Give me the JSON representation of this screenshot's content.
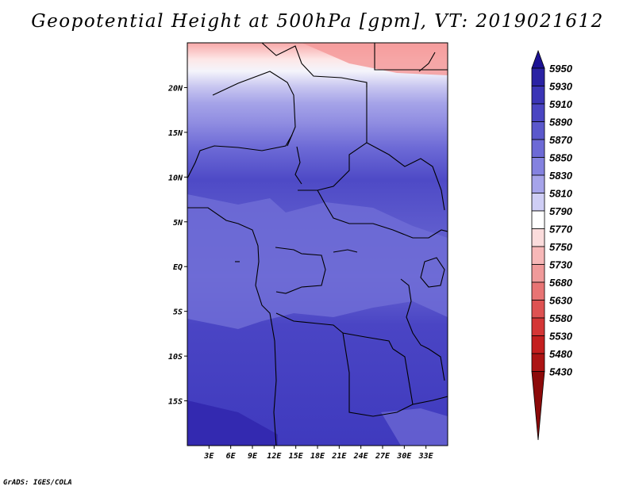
{
  "chart_data": {
    "type": "heatmap",
    "title": "Geopotential Height at 500hPa [gpm], VT: 2019021612",
    "subtitle": "",
    "xlabel": "",
    "ylabel": "",
    "xlim": [
      0,
      36
    ],
    "ylim": [
      -20,
      25
    ],
    "x_ticks": [
      {
        "value": 3,
        "label": "3E"
      },
      {
        "value": 6,
        "label": "6E"
      },
      {
        "value": 9,
        "label": "9E"
      },
      {
        "value": 12,
        "label": "12E"
      },
      {
        "value": 15,
        "label": "15E"
      },
      {
        "value": 18,
        "label": "18E"
      },
      {
        "value": 21,
        "label": "21E"
      },
      {
        "value": 24,
        "label": "24E"
      },
      {
        "value": 27,
        "label": "27E"
      },
      {
        "value": 30,
        "label": "30E"
      },
      {
        "value": 33,
        "label": "33E"
      }
    ],
    "y_ticks": [
      {
        "value": 20,
        "label": "20N"
      },
      {
        "value": 15,
        "label": "15N"
      },
      {
        "value": 10,
        "label": "10N"
      },
      {
        "value": 5,
        "label": "5N"
      },
      {
        "value": 0,
        "label": "EQ"
      },
      {
        "value": -5,
        "label": "5S"
      },
      {
        "value": -10,
        "label": "10S"
      },
      {
        "value": -15,
        "label": "15S"
      }
    ],
    "colorbar": {
      "levels": [
        5950,
        5930,
        5910,
        5890,
        5870,
        5850,
        5830,
        5810,
        5790,
        5770,
        5750,
        5730,
        5680,
        5630,
        5580,
        5530,
        5480,
        5430
      ],
      "colors": [
        "#1c1294",
        "#2a22a4",
        "#3b35b6",
        "#4a45c2",
        "#5b58cc",
        "#6d6ad6",
        "#8482e0",
        "#a6a4ea",
        "#cfcef5",
        "#ffffff",
        "#fbdcdc",
        "#f7b8b8",
        "#f09a9a",
        "#e87474",
        "#de5252",
        "#d43636",
        "#c41f1f",
        "#ac1414",
        "#8c0a0a"
      ]
    },
    "colors": {
      "land_outline": "#000000",
      "field_north": "#fbb9b9",
      "field_band_white": "#f4f4fb"
    }
  },
  "footer": {
    "credit": "GrADS: IGES/COLA"
  }
}
